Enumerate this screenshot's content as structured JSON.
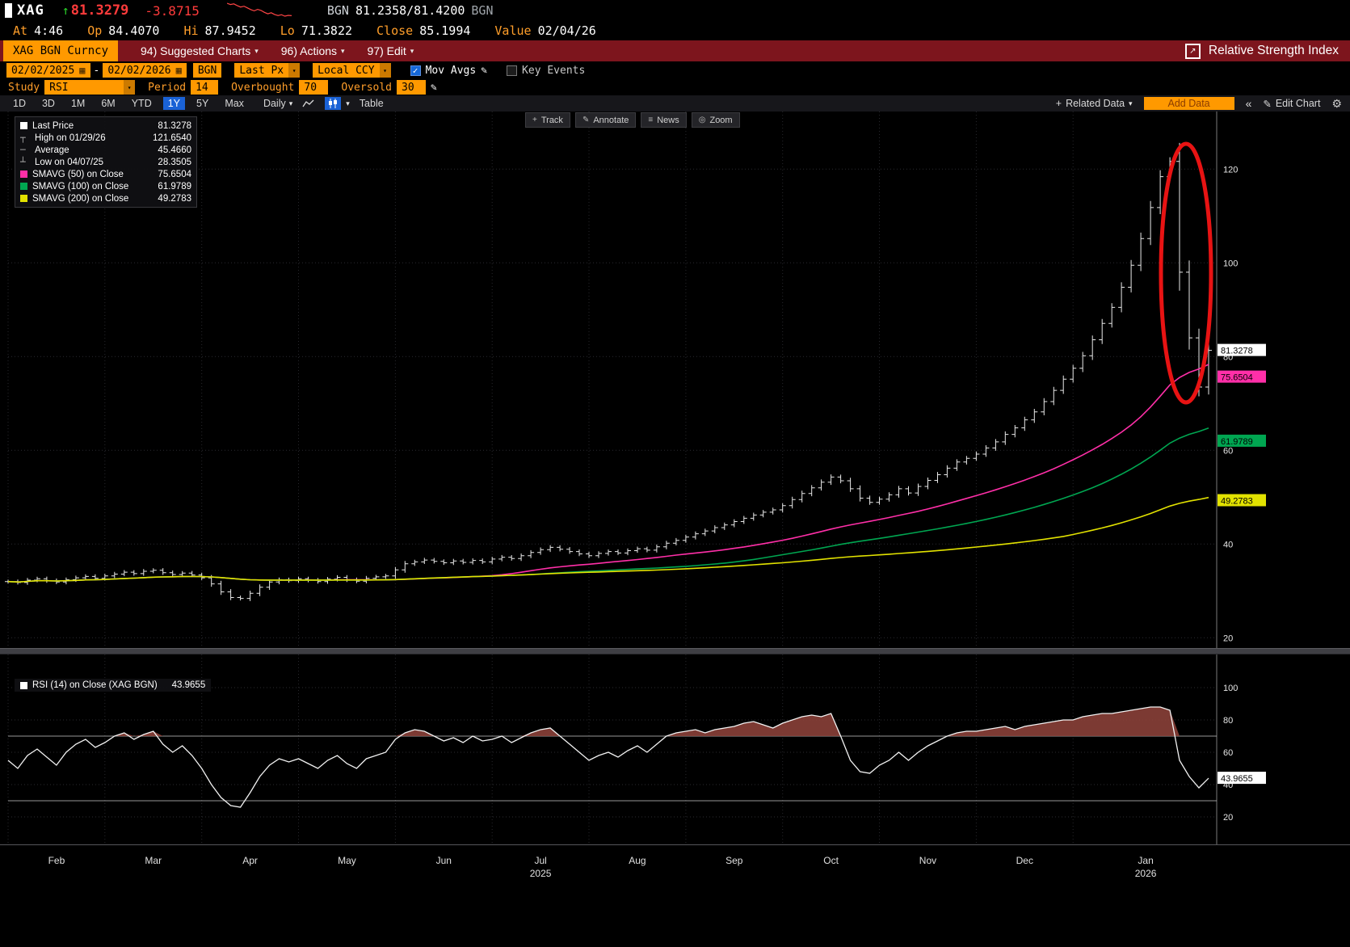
{
  "header": {
    "ticker": "XAG",
    "price": "81.3279",
    "change": "-3.8715",
    "source": "BGN",
    "bid_ask": "81.2358/81.4200",
    "source2": "BGN",
    "stats": [
      {
        "label": "At",
        "value": "4:46"
      },
      {
        "label": "Op",
        "value": "84.4070"
      },
      {
        "label": "Hi",
        "value": "87.9452"
      },
      {
        "label": "Lo",
        "value": "71.3822"
      },
      {
        "label": "Close",
        "value": "85.1994"
      },
      {
        "label": "Value",
        "value": "02/04/26"
      }
    ],
    "sparkline": [
      87.2,
      86.6,
      86.9,
      86.1,
      85.4,
      85.8,
      85.0,
      84.2,
      83.6,
      84.3,
      83.8,
      82.9,
      82.2,
      82.7,
      81.9,
      81.4,
      81.8,
      81.1,
      81.5,
      81.33
    ]
  },
  "menubar": {
    "security": "XAG BGN Curncy",
    "items": [
      "94) Suggested Charts",
      "96) Actions",
      "97) Edit"
    ],
    "chart_title": "Relative Strength Index"
  },
  "controls": {
    "date_from": "02/02/2025",
    "date_to": "02/02/2026",
    "source": "BGN",
    "px_type": "Last Px",
    "currency": "Local CCY",
    "mov_avgs_label": "Mov Avgs",
    "key_events_label": "Key Events",
    "study_label": "Study",
    "study_value": "RSI",
    "period_label": "Period",
    "period_value": "14",
    "overbought_label": "Overbought",
    "overbought_value": "70",
    "oversold_label": "Oversold",
    "oversold_value": "30"
  },
  "toolbar": {
    "ranges": [
      "1D",
      "3D",
      "1M",
      "6M",
      "YTD",
      "1Y",
      "5Y",
      "Max"
    ],
    "active_range": "1Y",
    "frequency": "Daily",
    "table_label": "Table",
    "related_data": "Related Data",
    "add_data": "Add Data",
    "edit_chart": "Edit Chart"
  },
  "chart_tools": {
    "track": "Track",
    "annotate": "Annotate",
    "news": "News",
    "zoom": "Zoom"
  },
  "legend": {
    "items": [
      {
        "type": "square",
        "color": "#ffffff",
        "label": "Last Price",
        "value": "81.3278"
      },
      {
        "type": "high",
        "color": "#9a9a9a",
        "label": "High on 01/29/26",
        "value": "121.6540"
      },
      {
        "type": "avg",
        "color": "#9a9a9a",
        "label": "Average",
        "value": "45.4660"
      },
      {
        "type": "low",
        "color": "#9a9a9a",
        "label": "Low on 04/07/25",
        "value": "28.3505"
      },
      {
        "type": "square",
        "color": "#ff2fa8",
        "label": "SMAVG (50)  on Close",
        "value": "75.6504"
      },
      {
        "type": "square",
        "color": "#00a651",
        "label": "SMAVG (100)  on Close",
        "value": "61.9789"
      },
      {
        "type": "square",
        "color": "#e2e200",
        "label": "SMAVG (200)  on Close",
        "value": "49.2783"
      }
    ]
  },
  "rsi_legend": {
    "label": "RSI (14)  on Close (XAG BGN)",
    "value": "43.9655"
  },
  "axes": {
    "price_ticks": [
      20,
      40,
      60,
      80,
      100,
      120
    ],
    "rsi_ticks": [
      20,
      40,
      60,
      80,
      100
    ],
    "months": [
      "Feb",
      "Mar",
      "Apr",
      "May",
      "Jun",
      "Jul",
      "Aug",
      "Sep",
      "Oct",
      "Nov",
      "Dec",
      "Jan"
    ],
    "years": {
      "Jul": "2025",
      "Jan": "2026"
    }
  },
  "badges": {
    "price": [
      {
        "value": "81.3278",
        "color": "#ffffff"
      },
      {
        "value": "75.6504",
        "color": "#ff2fa8"
      },
      {
        "value": "61.9789",
        "color": "#00a651"
      },
      {
        "value": "49.2783",
        "color": "#e2e200"
      }
    ],
    "rsi": {
      "value": "43.9655",
      "color": "#ffffff"
    }
  },
  "annotation": {
    "type": "ellipse",
    "color": "#e81313",
    "target": "january-spike-and-crash"
  },
  "chart_data": [
    {
      "type": "bar",
      "subtype": "ohlc",
      "title": "XAG BGN Curncy - Last Px - 1Y Daily",
      "ylim": [
        15,
        125
      ],
      "month_start_index": [
        0,
        10,
        20,
        30,
        40,
        50,
        60,
        70,
        80,
        90,
        100,
        110
      ],
      "close": [
        32.0,
        31.8,
        32.3,
        32.6,
        32.2,
        31.9,
        32.4,
        32.8,
        33.1,
        32.7,
        33.2,
        33.6,
        34.0,
        33.7,
        34.2,
        34.4,
        33.9,
        33.5,
        33.8,
        33.4,
        32.8,
        31.5,
        29.8,
        28.6,
        28.4,
        29.5,
        30.8,
        31.9,
        32.4,
        32.2,
        32.6,
        32.3,
        32.0,
        32.5,
        32.9,
        32.4,
        32.1,
        32.7,
        33.0,
        33.2,
        34.5,
        35.8,
        36.2,
        36.6,
        36.3,
        36.0,
        36.4,
        36.1,
        36.5,
        36.2,
        36.8,
        37.2,
        36.9,
        37.5,
        38.2,
        38.8,
        39.3,
        38.9,
        38.4,
        37.9,
        37.5,
        38.0,
        38.4,
        38.1,
        38.6,
        39.0,
        38.7,
        39.4,
        40.2,
        40.8,
        41.5,
        42.2,
        42.8,
        43.5,
        44.1,
        44.8,
        45.5,
        46.2,
        46.8,
        47.3,
        48.2,
        49.5,
        50.8,
        52.0,
        53.2,
        54.3,
        53.5,
        51.8,
        49.8,
        48.9,
        49.6,
        50.5,
        51.8,
        50.9,
        52.3,
        53.6,
        54.8,
        56.2,
        57.5,
        58.3,
        59.2,
        60.5,
        61.8,
        63.4,
        64.8,
        66.5,
        68.2,
        70.4,
        72.8,
        75.2,
        77.5,
        80.2,
        83.6,
        87.1,
        90.5,
        94.8,
        99.5,
        105.2,
        111.8,
        118.4,
        121.65,
        98.0,
        84.0,
        73.5,
        81.33
      ],
      "stats": {
        "last": 81.3278,
        "high": 121.654,
        "high_date": "01/29/26",
        "average": 45.466,
        "low": 28.3505,
        "low_date": "04/07/25"
      },
      "overlays": [
        {
          "name": "SMAVG (50) on Close",
          "value": 75.6504,
          "color": "#ff2fa8",
          "window": 30
        },
        {
          "name": "SMAVG (100) on Close",
          "value": 61.9789,
          "color": "#00a651",
          "window": 55
        },
        {
          "name": "SMAVG (200) on Close",
          "value": 49.2783,
          "color": "#e2e200",
          "window": 110
        }
      ]
    },
    {
      "type": "line",
      "name": "RSI (14) on Close (XAG BGN)",
      "last": 43.9655,
      "ylim": [
        0,
        100
      ],
      "overbought": 70,
      "oversold": 30,
      "values": [
        55,
        50,
        58,
        62,
        57,
        52,
        60,
        65,
        68,
        63,
        66,
        70,
        72,
        68,
        71,
        73,
        65,
        60,
        64,
        58,
        50,
        40,
        32,
        27,
        26,
        35,
        45,
        52,
        56,
        54,
        56,
        53,
        50,
        55,
        58,
        53,
        50,
        56,
        58,
        60,
        68,
        72,
        74,
        73,
        70,
        67,
        69,
        66,
        70,
        67,
        68,
        70,
        66,
        69,
        72,
        74,
        75,
        70,
        65,
        60,
        55,
        58,
        60,
        57,
        61,
        64,
        60,
        65,
        70,
        72,
        73,
        74,
        72,
        74,
        75,
        76,
        78,
        79,
        77,
        75,
        78,
        80,
        82,
        83,
        82,
        84,
        70,
        55,
        48,
        47,
        52,
        55,
        60,
        55,
        60,
        64,
        67,
        70,
        72,
        73,
        73,
        74,
        75,
        76,
        74,
        76,
        77,
        78,
        79,
        80,
        80,
        82,
        83,
        84,
        84,
        85,
        86,
        87,
        88,
        88,
        86,
        55,
        45,
        38,
        43.97
      ]
    }
  ]
}
